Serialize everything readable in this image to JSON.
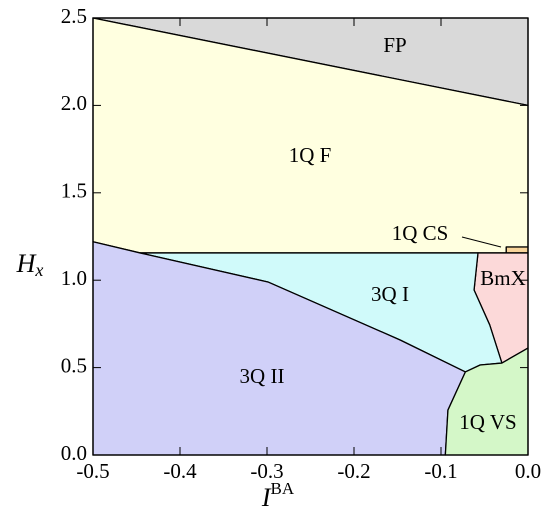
{
  "chart_data": {
    "type": "phase",
    "xlabel": "I",
    "xlabel_sup": "BA",
    "ylabel": "H",
    "ylabel_sub": "x",
    "xlim": [
      -0.5,
      0
    ],
    "ylim": [
      0,
      2.5
    ],
    "xticks": [
      -0.5,
      -0.4,
      -0.3,
      -0.2,
      -0.1,
      {
        "value": 0,
        "label": "0.0"
      }
    ],
    "yticks": [
      {
        "value": 0,
        "label": "0.0"
      },
      0.5,
      {
        "value": 1,
        "label": "1.0"
      },
      1.5,
      {
        "value": 2,
        "label": "2.0"
      },
      2.5
    ],
    "regions": [
      {
        "name": "FP",
        "color": "#d9d9d9",
        "x": [
          -0.5,
          0,
          0
        ],
        "y": [
          2.5,
          2.5,
          2.0
        ]
      },
      {
        "name": "1Q F",
        "color": "#ffffe0",
        "x": [
          -0.5,
          0,
          0,
          -0.025,
          -0.025,
          -0.446,
          -0.5
        ],
        "y": [
          2.5,
          2.0,
          1.19,
          1.19,
          1.156,
          1.156,
          1.22
        ]
      },
      {
        "name": "1Q CS",
        "color": "#f8d49a",
        "x": [
          -0.025,
          0,
          0,
          -0.025
        ],
        "y": [
          1.156,
          1.156,
          1.19,
          1.19
        ]
      },
      {
        "name": "BmX",
        "color": "#fcd9d9",
        "x": [
          -0.0575,
          0,
          0,
          -0.03,
          -0.044,
          -0.062
        ],
        "y": [
          1.156,
          1.156,
          0.612,
          0.526,
          0.744,
          0.944
        ]
      },
      {
        "name": "3Q I",
        "color": "#d0fafa",
        "x": [
          -0.446,
          -0.0575,
          -0.062,
          -0.044,
          -0.03,
          -0.055,
          -0.072,
          -0.147,
          -0.299
        ],
        "y": [
          1.156,
          1.156,
          0.944,
          0.744,
          0.526,
          0.515,
          0.475,
          0.658,
          0.99
        ]
      },
      {
        "name": "3Q II",
        "color": "#d0d0f8",
        "x": [
          -0.5,
          -0.5,
          -0.446,
          -0.299,
          -0.147,
          -0.072,
          -0.092,
          -0.095
        ],
        "y": [
          0,
          1.22,
          1.156,
          0.99,
          0.658,
          0.475,
          0.257,
          0
        ]
      },
      {
        "name": "1Q VS",
        "color": "#d4f7c8",
        "x": [
          -0.095,
          0,
          0,
          -0.03,
          -0.055,
          -0.072,
          -0.092
        ],
        "y": [
          0,
          0,
          0.612,
          0.526,
          0.515,
          0.475,
          0.257
        ]
      }
    ]
  }
}
